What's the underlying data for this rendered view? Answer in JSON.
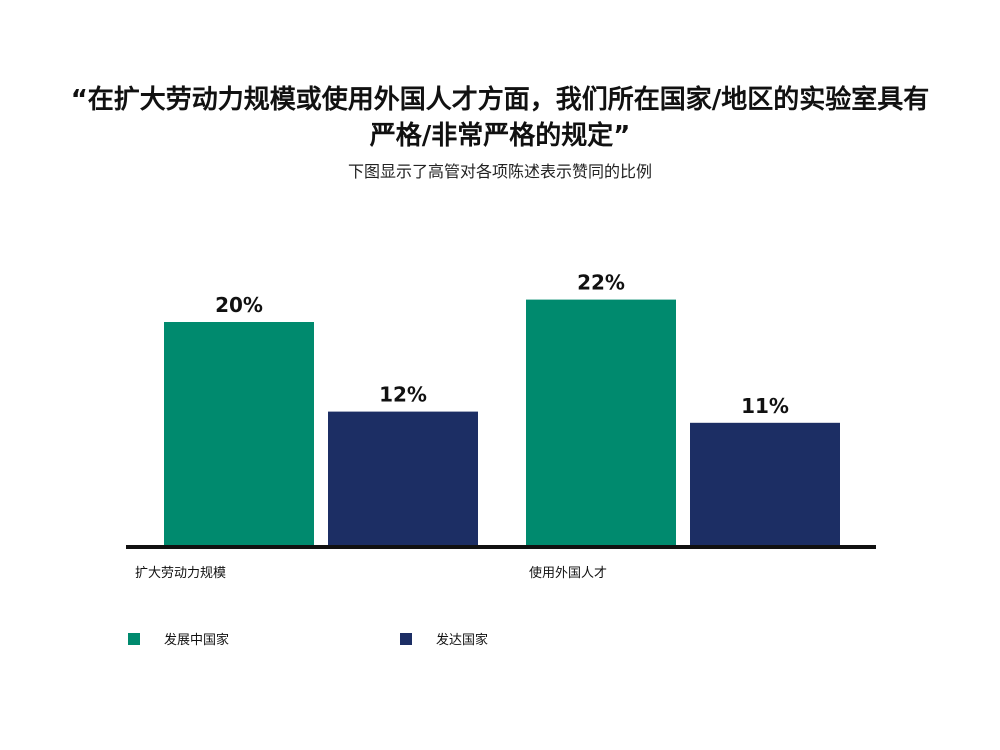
{
  "chart_data": {
    "type": "bar",
    "title": "“在扩大劳动力规模或使用外国人才方面，我们所在国家/地区的实验室具有严格/非常严格的规定”",
    "subtitle": "下图显示了高管对各项陈述表示赞同的比例",
    "categories": [
      "扩大劳动力规模",
      "使用外国人才"
    ],
    "series": [
      {
        "name": "发展中国家",
        "values": [
          20,
          22
        ],
        "labels": [
          "20%",
          "22%"
        ],
        "color": "#008a6e"
      },
      {
        "name": "发达国家",
        "values": [
          12,
          11
        ],
        "labels": [
          "12%",
          "11%"
        ],
        "color": "#1c2e64"
      }
    ],
    "ylim": [
      0,
      25
    ],
    "grid": false,
    "legend_position": "bottom-left",
    "axis_color": "#111111"
  }
}
